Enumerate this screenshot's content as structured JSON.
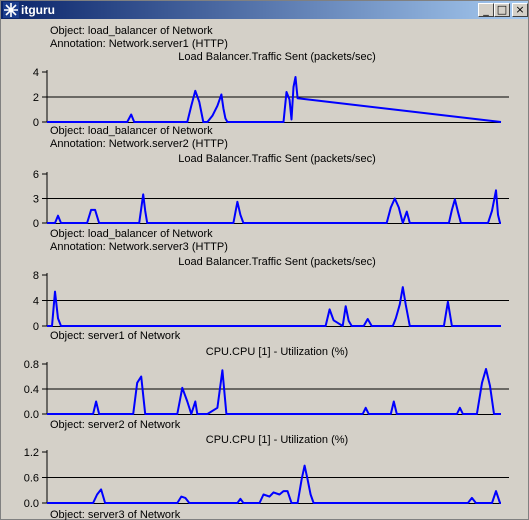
{
  "window": {
    "title": "itguru",
    "minimize": "_",
    "maximize": "□",
    "close": "×"
  },
  "chart_data": [
    {
      "type": "line",
      "object": "Object: load_balancer of Network",
      "annotation": "Annotation: Network.server1 (HTTP)",
      "title": "Load Balancer.Traffic Sent (packets/sec)",
      "yticks": [
        "4",
        "2",
        "0"
      ],
      "ylim": [
        0,
        4
      ],
      "grid_value": 2,
      "color": "#0000ff",
      "x": [
        0,
        80,
        84,
        87,
        90,
        140,
        144,
        148,
        152,
        156,
        160,
        165,
        170,
        174,
        176,
        178,
        180,
        182,
        233,
        236,
        239,
        242,
        244,
        246,
        248,
        250,
        453
      ],
      "values": [
        0,
        0,
        0.6,
        0,
        0,
        0,
        1.3,
        2.5,
        1.6,
        0,
        0,
        0.5,
        1.3,
        2.2,
        1.1,
        0.3,
        0,
        0,
        0,
        0,
        2.4,
        1.8,
        0.2,
        2.8,
        3.6,
        1.9,
        0
      ]
    },
    {
      "type": "line",
      "object": "Object: load_balancer of Network",
      "annotation": "Annotation: Network.server2 (HTTP)",
      "title": "Load Balancer.Traffic Sent (packets/sec)",
      "yticks": [
        "6",
        "3",
        "0"
      ],
      "ylim": [
        0,
        6
      ],
      "grid_value": 3,
      "color": "#0000ff",
      "x": [
        0,
        8,
        11,
        14,
        40,
        44,
        48,
        52,
        55,
        92,
        96,
        98,
        100,
        102,
        186,
        190,
        193,
        196,
        200,
        339,
        343,
        347,
        351,
        355,
        359,
        362,
        366,
        401,
        404,
        407,
        410,
        413,
        416,
        440,
        444,
        448,
        450,
        452,
        453
      ],
      "values": [
        0,
        0,
        0.9,
        0,
        0,
        1.6,
        1.6,
        0,
        0,
        0,
        3.5,
        1.5,
        0,
        0,
        0,
        2.6,
        1,
        0,
        0,
        0,
        1.9,
        3,
        1.9,
        0,
        1.4,
        0,
        0,
        0,
        1.6,
        2.9,
        1.4,
        0,
        0,
        0,
        1.5,
        4,
        1,
        0,
        0
      ]
    },
    {
      "type": "line",
      "object": "Object: load_balancer of Network",
      "annotation": "Annotation: Network.server3 (HTTP)",
      "title": "Load Balancer.Traffic Sent (packets/sec)",
      "yticks": [
        "8",
        "4",
        "0"
      ],
      "ylim": [
        0,
        8
      ],
      "grid_value": 4,
      "color": "#0000ff",
      "x": [
        0,
        5,
        8,
        11,
        14,
        278,
        282,
        286,
        290,
        295,
        298,
        301,
        304,
        316,
        320,
        324,
        345,
        348,
        352,
        355,
        358,
        362,
        366,
        396,
        400,
        404,
        408,
        453
      ],
      "values": [
        0,
        0,
        5.4,
        1.2,
        0,
        0,
        2.6,
        0.9,
        0.5,
        0,
        3.1,
        0.8,
        0,
        0,
        1.1,
        0,
        0,
        1.2,
        3.4,
        6.1,
        3.3,
        0,
        0,
        0,
        3.8,
        0,
        0,
        0
      ]
    },
    {
      "type": "line",
      "object": "Object: server1 of Network",
      "annotation": "",
      "title": "CPU.CPU [1] - Utilization (%)",
      "yticks": [
        "0.8",
        "0.4",
        "0.0"
      ],
      "ylim": [
        0,
        0.8
      ],
      "grid_value": 0.4,
      "color": "#0000ff",
      "x": [
        0,
        46,
        49,
        52,
        86,
        90,
        94,
        98,
        102,
        130,
        135,
        140,
        144,
        148,
        150,
        152,
        160,
        170,
        175,
        179,
        183,
        315,
        318,
        321,
        343,
        346,
        349,
        409,
        412,
        415,
        429,
        434,
        438,
        442,
        446,
        453
      ],
      "values": [
        0,
        0,
        0.2,
        0,
        0,
        0.5,
        0.6,
        0,
        0,
        0,
        0.42,
        0.2,
        0,
        0.2,
        0,
        0,
        0,
        0.1,
        0.7,
        0,
        0,
        0,
        0.1,
        0,
        0,
        0.2,
        0,
        0,
        0.1,
        0,
        0,
        0.5,
        0.72,
        0.45,
        0,
        0
      ]
    },
    {
      "type": "line",
      "object": "Object: server2 of Network",
      "annotation": "",
      "title": "CPU.CPU [1] - Utilization (%)",
      "yticks": [
        "1.2",
        "0.6",
        "0.0"
      ],
      "ylim": [
        0,
        1.2
      ],
      "grid_value": 0.6,
      "color": "#0000ff",
      "x": [
        0,
        46,
        50,
        54,
        58,
        130,
        134,
        138,
        142,
        190,
        193,
        196,
        212,
        216,
        222,
        226,
        232,
        236,
        240,
        244,
        250,
        254,
        257,
        260,
        263,
        266,
        270,
        420,
        424,
        428,
        444,
        448,
        452,
        453
      ],
      "values": [
        0,
        0,
        0.2,
        0.32,
        0,
        0,
        0.15,
        0.12,
        0,
        0,
        0.1,
        0,
        0,
        0.2,
        0.15,
        0.25,
        0.2,
        0.28,
        0.28,
        0,
        0,
        0.55,
        0.88,
        0.55,
        0.2,
        0,
        0,
        0,
        0.12,
        0,
        0,
        0.28,
        0,
        0
      ]
    }
  ],
  "footer_object": "Object: server3 of Network"
}
